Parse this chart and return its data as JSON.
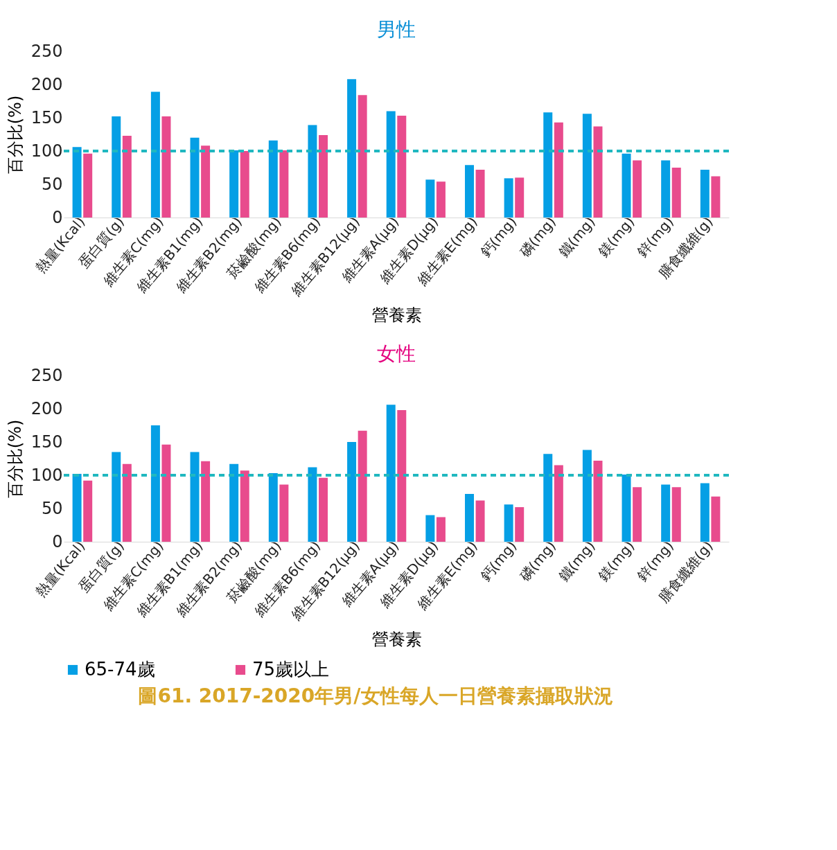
{
  "chart_data": [
    {
      "type": "bar",
      "title": "男性",
      "xlabel": "營養素",
      "ylabel": "百分比(%)",
      "categories": [
        "熱量(Kcal)",
        "蛋白質(g)",
        "維生素C(mg)",
        "維生素B1(mg)",
        "維生素B2(mg)",
        "菸鹼酸(mg)",
        "維生素B6(mg)",
        "維生素B12(μg)",
        "維生素A(μg)",
        "維生素D(μg)",
        "維生素E(mg)",
        "鈣(mg)",
        "磷(mg)",
        "鐵(mg)",
        "鎂(mg)",
        "鋅(mg)",
        "膳食纖維(g)"
      ],
      "series": [
        {
          "color": "#059fe5",
          "values": [
            106,
            152,
            189,
            120,
            101,
            116,
            139,
            208,
            160,
            57,
            79,
            59,
            158,
            156,
            96,
            86,
            72
          ]
        },
        {
          "color": "#e84b8d",
          "values": [
            96,
            123,
            152,
            108,
            100,
            101,
            124,
            184,
            153,
            54,
            72,
            60,
            143,
            137,
            86,
            75,
            62
          ]
        }
      ],
      "ylim": [
        0,
        250
      ],
      "yticks": [
        0,
        50,
        100,
        150,
        200,
        250
      ],
      "grid": false,
      "legend": false,
      "ref_lines": [
        {
          "axis": "y",
          "value": 100,
          "color": "#20b8c0",
          "line_style": "dashed"
        }
      ]
    },
    {
      "type": "bar",
      "title": "女性",
      "xlabel": "營養素",
      "ylabel": "百分比(%)",
      "categories": [
        "熱量(Kcal)",
        "蛋白質(g)",
        "維生素C(mg)",
        "維生素B1(mg)",
        "維生素B2(mg)",
        "菸鹼酸(mg)",
        "維生素B6(mg)",
        "維生素B12(μg)",
        "維生素A(μg)",
        "維生素D(μg)",
        "維生素E(mg)",
        "鈣(mg)",
        "磷(mg)",
        "鐵(mg)",
        "鎂(mg)",
        "鋅(mg)",
        "膳食纖維(g)"
      ],
      "series": [
        {
          "name": "65-74歲",
          "color": "#059fe5",
          "values": [
            102,
            135,
            175,
            135,
            117,
            103,
            112,
            150,
            206,
            40,
            72,
            56,
            132,
            138,
            101,
            86,
            88
          ]
        },
        {
          "name": "75歲以上",
          "color": "#e84b8d",
          "values": [
            92,
            117,
            146,
            121,
            107,
            86,
            96,
            167,
            198,
            37,
            62,
            52,
            115,
            122,
            82,
            82,
            68
          ]
        }
      ],
      "ylim": [
        0,
        250
      ],
      "yticks": [
        0,
        50,
        100,
        150,
        200,
        250
      ],
      "grid": false,
      "legend": "bottom",
      "ref_lines": [
        {
          "axis": "y",
          "value": 100,
          "color": "#20b8c0",
          "line_style": "dashed"
        }
      ],
      "annotations": [
        "圖61. 2017-2020年男/女性每人一日營養素攝取狀況"
      ]
    }
  ]
}
